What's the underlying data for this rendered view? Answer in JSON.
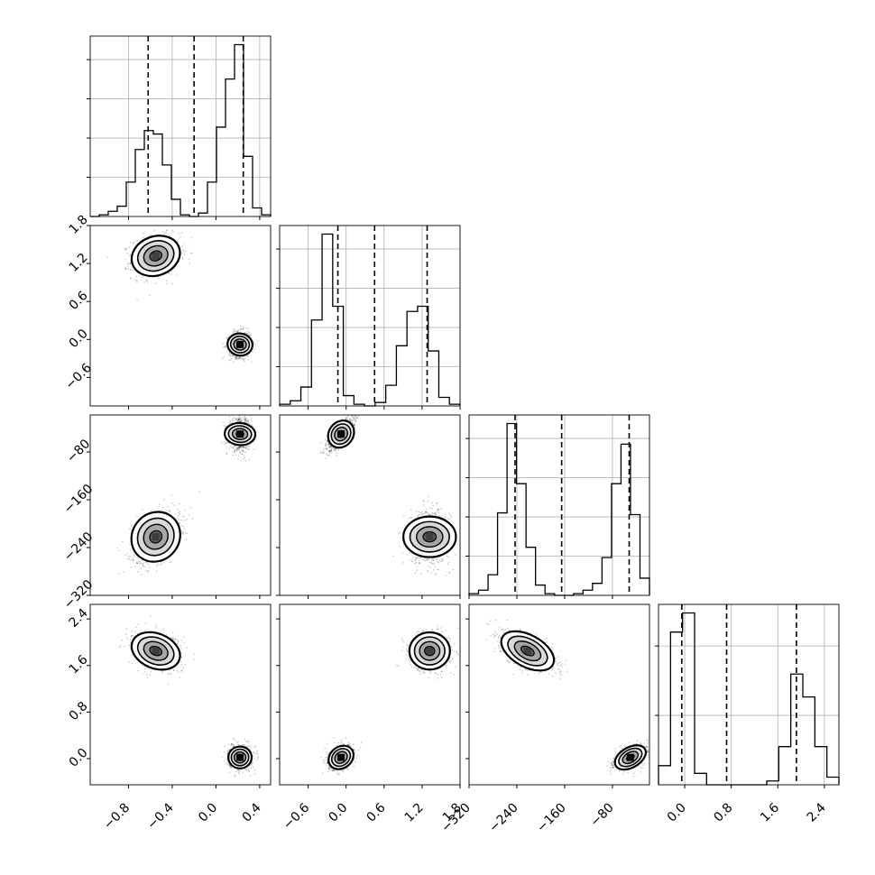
{
  "chart_data": {
    "type": "corner",
    "n_params": 4,
    "params": [
      {
        "range": [
          -1.15,
          0.5
        ],
        "ticks": [
          -0.8,
          -0.4,
          0.0,
          0.4
        ],
        "tick_labels": [
          "−0.8",
          "−0.4",
          "0.0",
          "0.4"
        ]
      },
      {
        "range": [
          -1.05,
          1.8
        ],
        "ticks": [
          -0.6,
          0.0,
          0.6,
          1.2,
          1.8
        ],
        "tick_labels": [
          "−0.6",
          "0.0",
          "0.6",
          "1.2",
          "1.8"
        ]
      },
      {
        "range": [
          -320,
          -18
        ],
        "ticks": [
          -320,
          -240,
          -160,
          -80
        ],
        "tick_labels": [
          "−320",
          "−240",
          "−160",
          "−80"
        ]
      },
      {
        "range": [
          -0.45,
          2.65
        ],
        "ticks": [
          0.0,
          0.8,
          1.6,
          2.4
        ],
        "tick_labels": [
          "0.0",
          "0.8",
          "1.6",
          "2.4"
        ]
      }
    ],
    "quantile_lines": [
      [
        -0.62,
        -0.2,
        0.25
      ],
      [
        -0.13,
        0.45,
        1.28
      ],
      [
        -243,
        -165,
        -52
      ],
      [
        -0.05,
        0.72,
        1.92
      ]
    ],
    "histograms": [
      [
        0,
        0.01,
        0.03,
        0.06,
        0.2,
        0.39,
        0.5,
        0.48,
        0.3,
        0.1,
        0.01,
        0,
        0.02,
        0.2,
        0.52,
        0.8,
        1.0,
        0.35,
        0.05,
        0.01
      ],
      [
        0.01,
        0.03,
        0.11,
        0.5,
        1.0,
        0.58,
        0.06,
        0.01,
        0,
        0.02,
        0.12,
        0.35,
        0.55,
        0.58,
        0.32,
        0.05,
        0.01
      ],
      [
        0.01,
        0.03,
        0.12,
        0.48,
        1.0,
        0.65,
        0.28,
        0.06,
        0.01,
        0,
        0,
        0.01,
        0.03,
        0.07,
        0.22,
        0.65,
        0.88,
        0.47,
        0.1
      ],
      [
        0.05,
        0.4,
        0.45,
        0.03,
        0,
        0,
        0,
        0,
        0,
        0.01,
        0.1,
        0.29,
        0.23,
        0.1,
        0.02
      ]
    ],
    "clusters": [
      {
        "mean": [
          -0.55,
          1.32,
          -222,
          1.85
        ],
        "sd": [
          0.11,
          0.16,
          22,
          0.16
        ]
      },
      {
        "mean": [
          0.22,
          -0.08,
          -50,
          0.02
        ],
        "sd": [
          0.05,
          0.1,
          13,
          0.1
        ]
      }
    ],
    "correlations": [
      {
        "pair": [
          0,
          1
        ],
        "r": [
          0.15,
          0.05
        ]
      },
      {
        "pair": [
          0,
          2
        ],
        "r": [
          0.4,
          0.05
        ]
      },
      {
        "pair": [
          0,
          3
        ],
        "r": [
          -0.25,
          0.0
        ]
      },
      {
        "pair": [
          1,
          2
        ],
        "r": [
          0.0,
          0.78
        ]
      },
      {
        "pair": [
          1,
          3
        ],
        "r": [
          0.0,
          0.3
        ]
      },
      {
        "pair": [
          2,
          3
        ],
        "r": [
          -0.55,
          0.5
        ]
      }
    ]
  }
}
